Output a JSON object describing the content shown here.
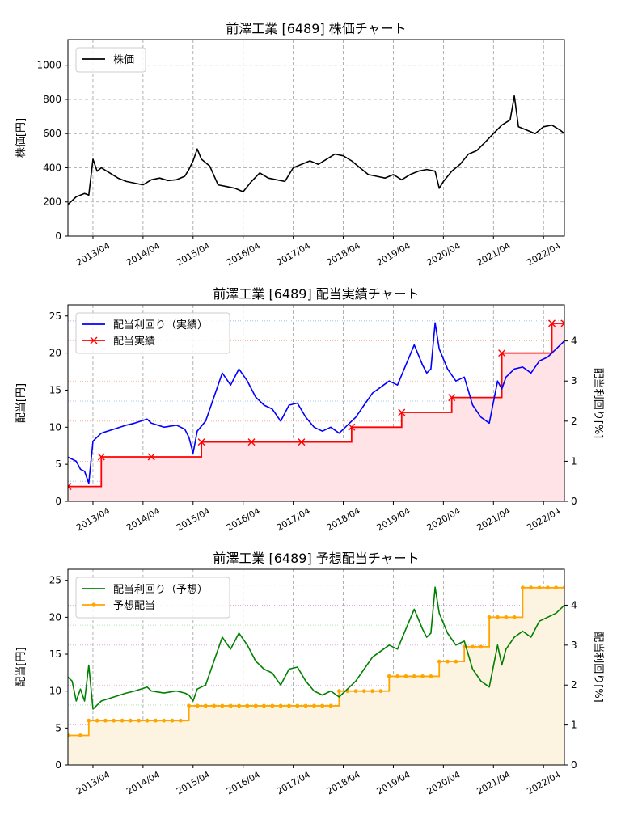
{
  "chart_data": [
    {
      "type": "line",
      "title": "前澤工業 [6489]  株価チャート",
      "ylabel": "株価[円]",
      "ylim": [
        0,
        1150
      ],
      "yticks": [
        0,
        200,
        400,
        600,
        800,
        1000
      ],
      "x_tick_labels": [
        "2013/04",
        "2014/04",
        "2015/04",
        "2016/04",
        "2017/04",
        "2018/04",
        "2019/04",
        "2020/04",
        "2021/04",
        "2022/04"
      ],
      "grid": true,
      "legend": "top-left",
      "series": [
        {
          "name": "株価",
          "color": "#000000",
          "x": [
            "2012/10",
            "2012/12",
            "2013/02",
            "2013/03",
            "2013/04",
            "2013/05",
            "2013/06",
            "2013/08",
            "2013/10",
            "2013/12",
            "2014/02",
            "2014/04",
            "2014/06",
            "2014/08",
            "2014/10",
            "2014/12",
            "2015/02",
            "2015/03",
            "2015/04",
            "2015/05",
            "2015/06",
            "2015/08",
            "2015/10",
            "2015/12",
            "2016/02",
            "2016/04",
            "2016/06",
            "2016/08",
            "2016/10",
            "2016/12",
            "2017/02",
            "2017/04",
            "2017/06",
            "2017/08",
            "2017/10",
            "2017/12",
            "2018/02",
            "2018/04",
            "2018/06",
            "2018/08",
            "2018/10",
            "2018/12",
            "2019/02",
            "2019/04",
            "2019/06",
            "2019/08",
            "2019/10",
            "2019/12",
            "2020/02",
            "2020/03",
            "2020/04",
            "2020/06",
            "2020/08",
            "2020/10",
            "2020/12",
            "2021/02",
            "2021/04",
            "2021/06",
            "2021/08",
            "2021/09",
            "2021/10",
            "2021/12",
            "2022/02",
            "2022/04",
            "2022/06",
            "2022/08",
            "2022/09"
          ],
          "values": [
            185,
            230,
            250,
            240,
            450,
            380,
            400,
            370,
            340,
            320,
            310,
            300,
            330,
            340,
            325,
            330,
            350,
            390,
            440,
            510,
            450,
            410,
            300,
            290,
            280,
            260,
            320,
            370,
            340,
            330,
            320,
            400,
            420,
            440,
            420,
            450,
            480,
            470,
            440,
            400,
            360,
            350,
            340,
            360,
            330,
            360,
            380,
            390,
            380,
            280,
            320,
            380,
            420,
            480,
            500,
            550,
            600,
            650,
            680,
            820,
            640,
            620,
            600,
            640,
            650,
            620,
            600
          ]
        }
      ]
    },
    {
      "type": "line",
      "title": "前澤工業 [6489]  配当実績チャート",
      "ylabel": "配当[円]",
      "y2label": "配当利回り[%]",
      "ylim": [
        0,
        26.5
      ],
      "yticks": [
        0,
        5,
        10,
        15,
        20,
        25
      ],
      "y2lim": [
        0,
        4.9
      ],
      "y2ticks": [
        0,
        1,
        2,
        3,
        4
      ],
      "x_tick_labels": [
        "2013/04",
        "2014/04",
        "2015/04",
        "2016/04",
        "2017/04",
        "2018/04",
        "2019/04",
        "2020/04",
        "2021/04",
        "2022/04"
      ],
      "grid": true,
      "legend": "top-left",
      "series": [
        {
          "name": "配当利回り（実績）",
          "axis": "right",
          "color": "#0000ff",
          "x": [
            "2012/10",
            "2012/12",
            "2013/01",
            "2013/02",
            "2013/03",
            "2013/04",
            "2013/06",
            "2013/09",
            "2013/12",
            "2014/02",
            "2014/05",
            "2014/06",
            "2014/09",
            "2014/12",
            "2015/02",
            "2015/03",
            "2015/04",
            "2015/05",
            "2015/07",
            "2015/09",
            "2015/11",
            "2016/01",
            "2016/03",
            "2016/05",
            "2016/07",
            "2016/09",
            "2016/11",
            "2017/01",
            "2017/03",
            "2017/05",
            "2017/07",
            "2017/09",
            "2017/11",
            "2018/01",
            "2018/03",
            "2018/05",
            "2018/07",
            "2018/09",
            "2018/11",
            "2019/01",
            "2019/03",
            "2019/05",
            "2019/07",
            "2019/09",
            "2019/11",
            "2019/12",
            "2020/01",
            "2020/02",
            "2020/03",
            "2020/05",
            "2020/07",
            "2020/09",
            "2020/11",
            "2021/01",
            "2021/03",
            "2021/05",
            "2021/06",
            "2021/07",
            "2021/09",
            "2021/11",
            "2022/01",
            "2022/03",
            "2022/05",
            "2022/07",
            "2022/09"
          ],
          "values": [
            1.1,
            1.0,
            0.8,
            0.75,
            0.45,
            1.5,
            1.7,
            1.8,
            1.9,
            1.95,
            2.05,
            1.95,
            1.85,
            1.9,
            1.8,
            1.6,
            1.2,
            1.75,
            2.0,
            2.6,
            3.2,
            2.9,
            3.3,
            3.0,
            2.6,
            2.4,
            2.3,
            2.0,
            2.4,
            2.45,
            2.1,
            1.85,
            1.75,
            1.85,
            1.7,
            1.9,
            2.1,
            2.4,
            2.7,
            2.85,
            3.0,
            2.9,
            3.4,
            3.9,
            3.4,
            3.2,
            3.3,
            4.45,
            3.8,
            3.3,
            3.0,
            3.1,
            2.4,
            2.1,
            1.95,
            3.0,
            2.8,
            3.1,
            3.3,
            3.35,
            3.2,
            3.5,
            3.6,
            3.8,
            4.0
          ]
        },
        {
          "name": "配当実績",
          "axis": "left",
          "color": "#ff0000",
          "step": true,
          "marker": "x",
          "x": [
            "2012/10",
            "2013/06",
            "2014/06",
            "2015/06",
            "2016/06",
            "2017/06",
            "2018/06",
            "2019/06",
            "2020/06",
            "2021/06",
            "2022/06",
            "2022/09"
          ],
          "values": [
            2,
            6,
            6,
            8,
            8,
            8,
            10,
            12,
            14,
            20,
            24,
            24
          ]
        }
      ]
    },
    {
      "type": "line",
      "title": "前澤工業 [6489]  予想配当チャート",
      "ylabel": "配当[円]",
      "y2label": "配当利回り[%]",
      "ylim": [
        0,
        26.5
      ],
      "yticks": [
        0,
        5,
        10,
        15,
        20,
        25
      ],
      "y2lim": [
        0,
        4.9
      ],
      "y2ticks": [
        0,
        1,
        2,
        3,
        4
      ],
      "x_tick_labels": [
        "2013/04",
        "2014/04",
        "2015/04",
        "2016/04",
        "2017/04",
        "2018/04",
        "2019/04",
        "2020/04",
        "2021/04",
        "2022/04"
      ],
      "grid": true,
      "legend": "top-left",
      "series": [
        {
          "name": "配当利回り（予想）",
          "axis": "right",
          "color": "#008000",
          "x": [
            "2012/10",
            "2012/11",
            "2012/12",
            "2013/01",
            "2013/02",
            "2013/03",
            "2013/04",
            "2013/06",
            "2013/09",
            "2013/12",
            "2014/02",
            "2014/05",
            "2014/06",
            "2014/09",
            "2014/12",
            "2015/02",
            "2015/03",
            "2015/04",
            "2015/05",
            "2015/07",
            "2015/09",
            "2015/11",
            "2016/01",
            "2016/03",
            "2016/05",
            "2016/07",
            "2016/09",
            "2016/11",
            "2017/01",
            "2017/03",
            "2017/05",
            "2017/07",
            "2017/09",
            "2017/11",
            "2018/01",
            "2018/03",
            "2018/05",
            "2018/07",
            "2018/09",
            "2018/11",
            "2019/01",
            "2019/03",
            "2019/05",
            "2019/07",
            "2019/09",
            "2019/11",
            "2019/12",
            "2020/01",
            "2020/02",
            "2020/03",
            "2020/05",
            "2020/07",
            "2020/09",
            "2020/11",
            "2021/01",
            "2021/03",
            "2021/05",
            "2021/06",
            "2021/07",
            "2021/09",
            "2021/11",
            "2022/01",
            "2022/03",
            "2022/05",
            "2022/07",
            "2022/09"
          ],
          "values": [
            2.2,
            2.1,
            1.6,
            1.9,
            1.6,
            2.5,
            1.4,
            1.6,
            1.7,
            1.8,
            1.85,
            1.95,
            1.85,
            1.8,
            1.85,
            1.8,
            1.75,
            1.6,
            1.9,
            2.0,
            2.6,
            3.2,
            2.9,
            3.3,
            3.0,
            2.6,
            2.4,
            2.3,
            2.0,
            2.4,
            2.45,
            2.1,
            1.85,
            1.75,
            1.85,
            1.7,
            1.9,
            2.1,
            2.4,
            2.7,
            2.85,
            3.0,
            2.9,
            3.4,
            3.9,
            3.4,
            3.2,
            3.3,
            4.45,
            3.8,
            3.3,
            3.0,
            3.1,
            2.4,
            2.1,
            1.95,
            3.0,
            2.5,
            2.9,
            3.2,
            3.35,
            3.2,
            3.6,
            3.7,
            3.8,
            4.0
          ]
        },
        {
          "name": "予想配当",
          "axis": "left",
          "color": "#ffa500",
          "step": true,
          "marker": "o",
          "x": [
            "2012/10",
            "2013/01",
            "2013/03",
            "2013/05",
            "2013/07",
            "2013/09",
            "2013/11",
            "2014/01",
            "2014/03",
            "2014/05",
            "2014/07",
            "2014/09",
            "2014/11",
            "2015/01",
            "2015/03",
            "2015/05",
            "2015/07",
            "2015/09",
            "2015/11",
            "2016/01",
            "2016/03",
            "2016/05",
            "2016/07",
            "2016/09",
            "2016/11",
            "2017/01",
            "2017/03",
            "2017/05",
            "2017/07",
            "2017/09",
            "2017/11",
            "2018/01",
            "2018/03",
            "2018/05",
            "2018/07",
            "2018/09",
            "2018/11",
            "2019/01",
            "2019/03",
            "2019/05",
            "2019/07",
            "2019/09",
            "2019/11",
            "2020/01",
            "2020/03",
            "2020/05",
            "2020/07",
            "2020/09",
            "2020/11",
            "2021/01",
            "2021/03",
            "2021/05",
            "2021/07",
            "2021/09",
            "2021/11",
            "2022/01",
            "2022/03",
            "2022/05",
            "2022/07",
            "2022/09"
          ],
          "values": [
            4,
            4,
            6,
            6,
            6,
            6,
            6,
            6,
            6,
            6,
            6,
            6,
            6,
            6,
            8,
            8,
            8,
            8,
            8,
            8,
            8,
            8,
            8,
            8,
            8,
            8,
            8,
            8,
            8,
            8,
            8,
            8,
            10,
            10,
            10,
            10,
            10,
            10,
            12,
            12,
            12,
            12,
            12,
            12,
            14,
            14,
            14,
            16,
            16,
            16,
            20,
            20,
            20,
            20,
            24,
            24,
            24,
            24,
            24,
            24
          ]
        }
      ]
    }
  ]
}
